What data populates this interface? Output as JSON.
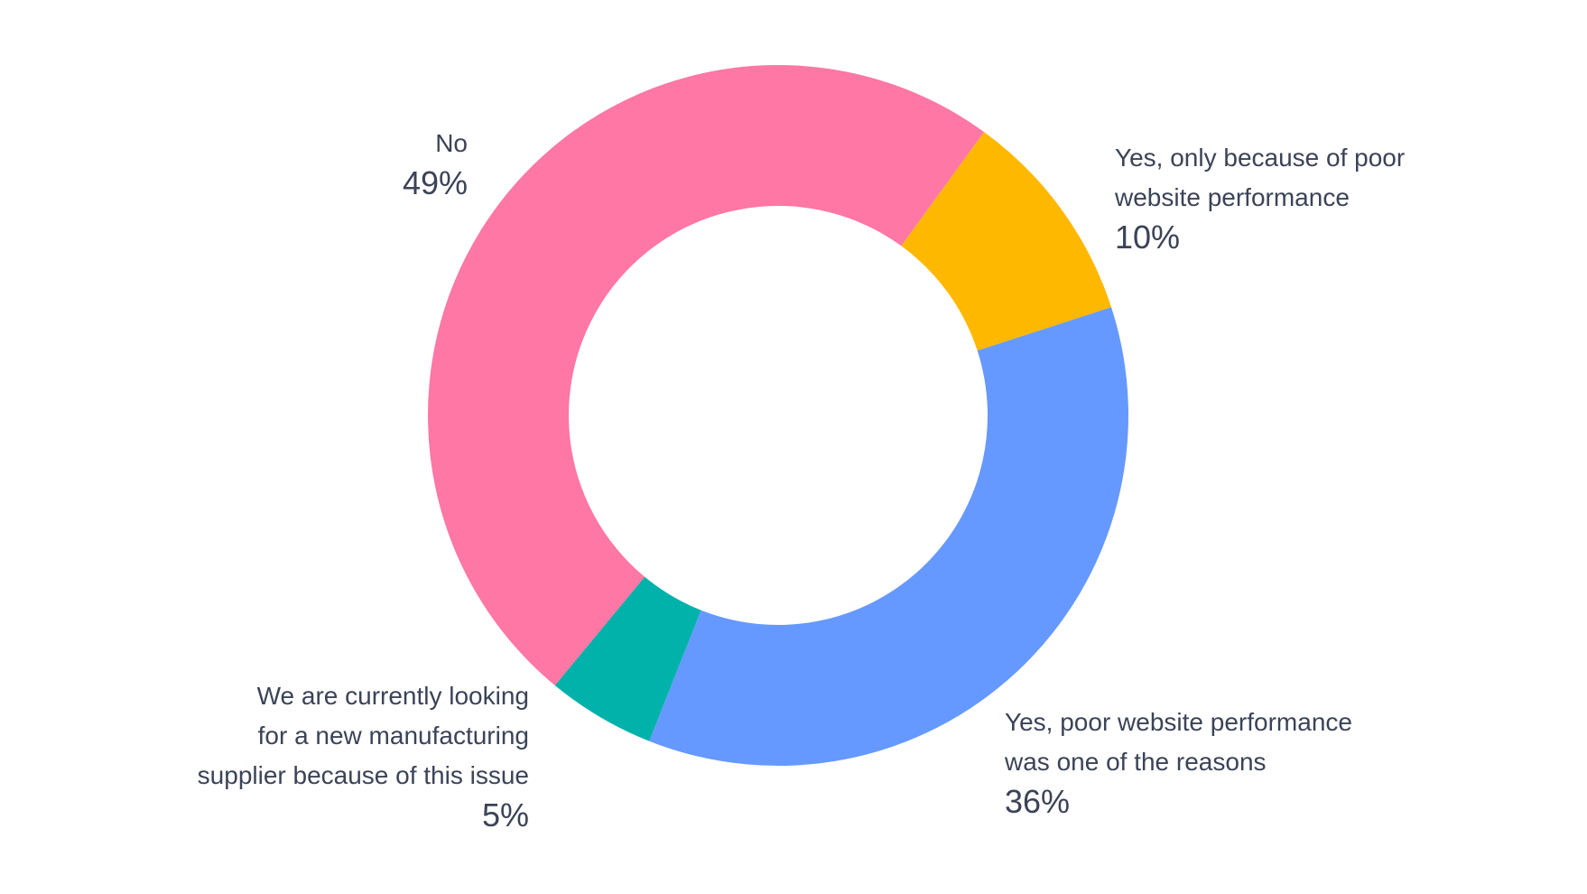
{
  "chart_data": {
    "type": "pie",
    "donut": true,
    "slices": [
      {
        "label": "Yes, only because of poor\nwebsite performance",
        "value": 10,
        "value_label": "10%",
        "color": "#FFB800"
      },
      {
        "label": "Yes, poor website performance\nwas one of the reasons",
        "value": 36,
        "value_label": "36%",
        "color": "#6699FF"
      },
      {
        "label": "We are currently looking\nfor a new manufacturing\nsupplier because of this issue",
        "value": 5,
        "value_label": "5%",
        "color": "#00B2AA"
      },
      {
        "label": "No",
        "value": 49,
        "value_label": "49%",
        "color": "#FF77A4"
      }
    ],
    "start_angle_deg": 36,
    "direction": "clockwise"
  }
}
